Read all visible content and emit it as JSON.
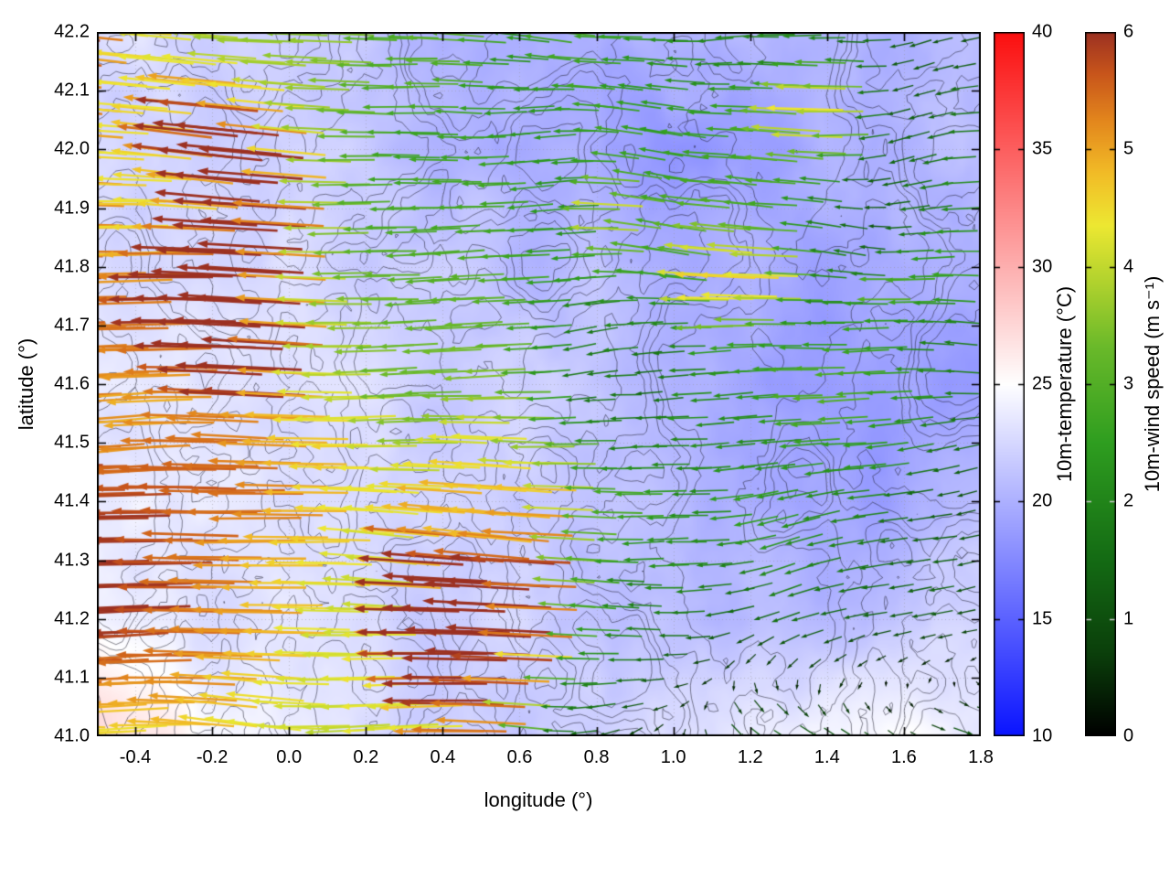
{
  "figure": {
    "background_color": "#ffffff",
    "xlabel": "longitude (°)",
    "ylabel": "latitude (°)",
    "xlim": [
      -0.5,
      1.8
    ],
    "ylim": [
      41.0,
      42.2
    ],
    "x_tick_values": [
      -0.4,
      -0.2,
      0.0,
      0.2,
      0.4,
      0.6,
      0.8,
      1.0,
      1.2,
      1.4,
      1.6,
      1.8
    ],
    "x_tick_labels": [
      "-0.4",
      "-0.2",
      "0.0",
      "0.2",
      "0.4",
      "0.6",
      "0.8",
      "1.0",
      "1.2",
      "1.4",
      "1.6",
      "1.8"
    ],
    "y_tick_values": [
      41.0,
      41.1,
      41.2,
      41.3,
      41.4,
      41.5,
      41.6,
      41.7,
      41.8,
      41.9,
      42.0,
      42.1,
      42.2
    ],
    "y_tick_labels": [
      "41.0",
      "41.1",
      "41.2",
      "41.3",
      "41.4",
      "41.5",
      "41.6",
      "41.7",
      "41.8",
      "41.9",
      "42.0",
      "42.1",
      "42.2"
    ],
    "grid_dotted": true,
    "border_color": "#000000"
  },
  "colorbars": [
    {
      "label": "10m-temperature (°C)",
      "min": 10,
      "max": 40,
      "tick_values": [
        10,
        15,
        20,
        25,
        30,
        35,
        40
      ],
      "tick_labels": [
        "10",
        "15",
        "20",
        "25",
        "30",
        "35",
        "40"
      ],
      "stops": [
        {
          "v": 10,
          "c": "#0a14ff"
        },
        {
          "v": 25,
          "c": "#ffffff"
        },
        {
          "v": 40,
          "c": "#fb0f0f"
        }
      ]
    },
    {
      "label": "10m-wind speed (m s⁻¹)",
      "min": 0,
      "max": 6,
      "tick_values": [
        0,
        1,
        2,
        3,
        4,
        5,
        6
      ],
      "tick_labels": [
        "0",
        "1",
        "2",
        "3",
        "4",
        "5",
        "6"
      ],
      "stops": [
        {
          "v": 0.0,
          "c": "#000000"
        },
        {
          "v": 0.7,
          "c": "#0b3f0b"
        },
        {
          "v": 1.5,
          "c": "#146b14"
        },
        {
          "v": 2.5,
          "c": "#2f9e20"
        },
        {
          "v": 3.3,
          "c": "#69b92a"
        },
        {
          "v": 3.9,
          "c": "#b5d42e"
        },
        {
          "v": 4.35,
          "c": "#ede832"
        },
        {
          "v": 4.8,
          "c": "#f2bc27"
        },
        {
          "v": 5.25,
          "c": "#e3861d"
        },
        {
          "v": 5.65,
          "c": "#c8551b"
        },
        {
          "v": 6.0,
          "c": "#9c3122"
        }
      ]
    }
  ],
  "chart_data": {
    "type": "heatmap",
    "subtype": "surface-temperature-field-with-colored-wind-vectors-and-terrain-contours",
    "title": "",
    "xlabel": "longitude (°)",
    "ylabel": "latitude (°)",
    "xlim": [
      -0.5,
      1.8
    ],
    "ylim": [
      41.0,
      42.2
    ],
    "temperature_colormap_range_c": [
      10,
      40
    ],
    "wind_speed_colormap_range_ms": [
      0,
      6
    ],
    "temperature_c": {
      "lon": [
        -0.5,
        -0.17,
        0.17,
        0.5,
        0.83,
        1.17,
        1.5,
        1.8
      ],
      "lat": [
        41.0,
        41.2,
        41.4,
        41.6,
        41.8,
        42.0,
        42.2
      ],
      "values": [
        [
          27.5,
          25.0,
          23.5,
          22.5,
          22.0,
          23.0,
          24.0,
          24.5
        ],
        [
          24.5,
          23.0,
          22.5,
          22.0,
          21.5,
          20.5,
          21.5,
          22.5
        ],
        [
          23.5,
          23.0,
          22.0,
          21.5,
          21.0,
          19.5,
          18.5,
          20.5
        ],
        [
          23.5,
          23.0,
          22.5,
          22.0,
          21.5,
          19.0,
          18.5,
          19.5
        ],
        [
          23.0,
          22.5,
          22.0,
          21.5,
          20.5,
          20.0,
          19.5,
          20.0
        ],
        [
          22.5,
          22.0,
          21.5,
          20.5,
          18.5,
          19.5,
          20.0,
          20.5
        ],
        [
          22.5,
          22.0,
          21.5,
          20.5,
          19.5,
          20.0,
          20.5,
          21.0
        ]
      ]
    },
    "wind_ms": {
      "lon": [
        -0.5,
        -0.17,
        0.17,
        0.5,
        0.83,
        1.17,
        1.5,
        1.8
      ],
      "lat": [
        41.0,
        41.2,
        41.4,
        41.6,
        41.8,
        42.0,
        42.2
      ],
      "u": [
        [
          -4.2,
          -4.6,
          -4.4,
          -3.4,
          -1.8,
          0.8,
          1.4,
          1.6
        ],
        [
          -5.8,
          -5.6,
          -5.0,
          -4.0,
          -2.4,
          -1.0,
          -0.8,
          -0.6
        ],
        [
          -5.8,
          -5.6,
          -5.2,
          -4.6,
          -3.4,
          -2.0,
          -1.4,
          -1.0
        ],
        [
          -5.8,
          -5.6,
          -4.8,
          -3.4,
          -1.4,
          -2.2,
          -2.6,
          -2.2
        ],
        [
          -5.6,
          -5.2,
          -4.2,
          -3.0,
          -2.4,
          -2.2,
          -2.0,
          -1.8
        ],
        [
          -5.2,
          -4.6,
          -4.0,
          -3.0,
          -2.6,
          -2.0,
          -1.8,
          -1.6
        ],
        [
          -4.8,
          -4.2,
          -3.8,
          -3.2,
          -2.6,
          -2.2,
          -1.8,
          -1.5
        ]
      ],
      "v": [
        [
          0.2,
          0.1,
          0.0,
          -0.1,
          -0.3,
          -0.5,
          -0.6,
          -0.5
        ],
        [
          0.0,
          0.0,
          0.1,
          0.0,
          -0.1,
          -0.3,
          -0.3,
          -0.2
        ],
        [
          0.0,
          0.0,
          0.0,
          0.1,
          0.0,
          -0.2,
          -0.2,
          -0.1
        ],
        [
          0.1,
          0.1,
          0.0,
          0.0,
          0.0,
          -0.1,
          0.0,
          0.1
        ],
        [
          0.2,
          0.1,
          0.1,
          0.0,
          0.0,
          0.0,
          0.2,
          0.1
        ],
        [
          0.2,
          0.2,
          0.1,
          0.1,
          0.0,
          0.1,
          0.1,
          0.0
        ],
        [
          0.3,
          0.2,
          0.2,
          0.1,
          0.2,
          0.1,
          0.0,
          0.0
        ]
      ],
      "arrow_spacing_deg": [
        0.0585,
        0.0405
      ]
    },
    "overlays": [
      "terrain contour lines (thin black)",
      "faint dotted graticule at tick spacing"
    ]
  }
}
